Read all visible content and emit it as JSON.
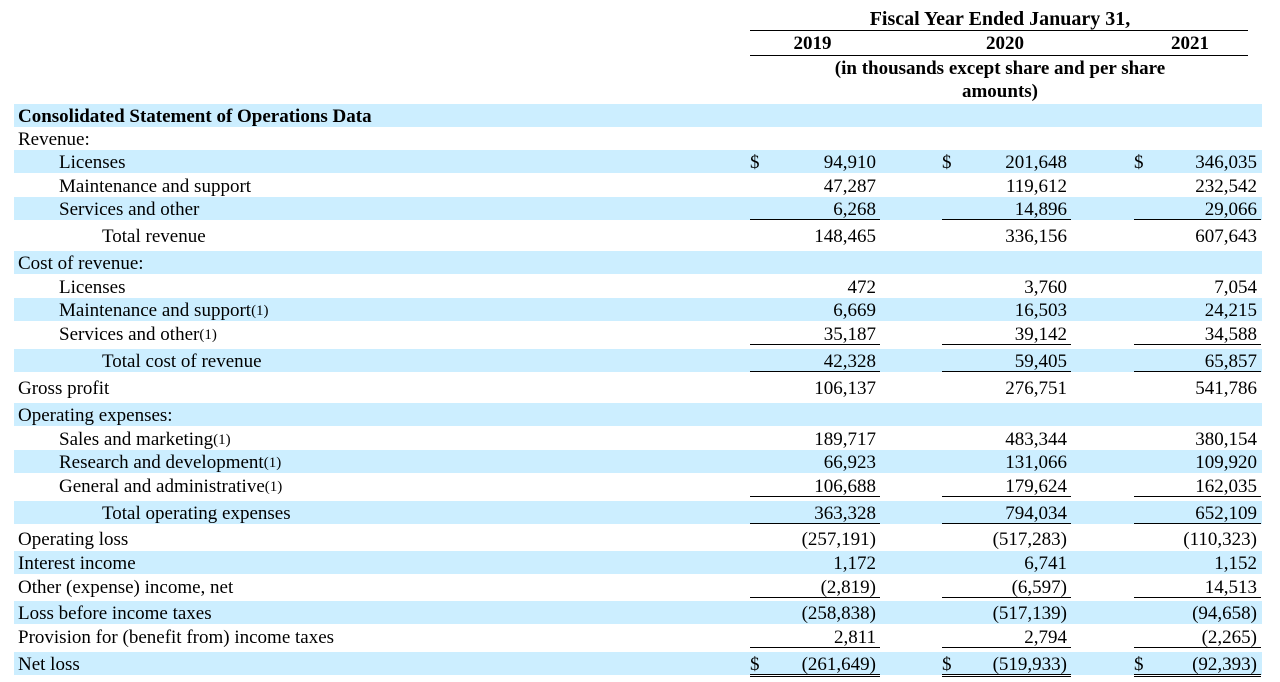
{
  "header": {
    "fiscal_title": "Fiscal Year Ended January 31,",
    "years": [
      "2019",
      "2020",
      "2021"
    ],
    "units_line1": "(in thousands except share and per share",
    "units_line2": "amounts)"
  },
  "rows": [
    {
      "label": "Consolidated Statement of Operations Data",
      "bold": true
    },
    {
      "label": "Revenue:"
    },
    {
      "label": "Licenses",
      "indent": 1,
      "dollar": true,
      "values": [
        "94,910",
        "201,648",
        "346,035"
      ]
    },
    {
      "label": "Maintenance and support",
      "indent": 1,
      "values": [
        "47,287",
        "119,612",
        "232,542"
      ]
    },
    {
      "label": "Services and other",
      "indent": 1,
      "values": [
        "6,268",
        "14,896",
        "29,066"
      ],
      "underline": "single"
    },
    {
      "label": "Total revenue",
      "indent": 2,
      "values": [
        "148,465",
        "336,156",
        "607,643"
      ]
    },
    {
      "label": "Cost of revenue:"
    },
    {
      "label": "Licenses",
      "indent": 1,
      "values": [
        "472",
        "3,760",
        "7,054"
      ]
    },
    {
      "label": "Maintenance and support",
      "footnote": "(1)",
      "indent": 1,
      "values": [
        "6,669",
        "16,503",
        "24,215"
      ]
    },
    {
      "label": "Services and other",
      "footnote": "(1)",
      "indent": 1,
      "values": [
        "35,187",
        "39,142",
        "34,588"
      ],
      "underline": "single"
    },
    {
      "label": "Total cost of revenue",
      "indent": 2,
      "values": [
        "42,328",
        "59,405",
        "65,857"
      ],
      "underline": "single"
    },
    {
      "label": "Gross profit",
      "values": [
        "106,137",
        "276,751",
        "541,786"
      ]
    },
    {
      "label": "Operating expenses:"
    },
    {
      "label": "Sales and marketing",
      "footnote": "(1)",
      "indent": 1,
      "values": [
        "189,717",
        "483,344",
        "380,154"
      ]
    },
    {
      "label": "Research and development",
      "footnote": "(1)",
      "indent": 1,
      "values": [
        "66,923",
        "131,066",
        "109,920"
      ]
    },
    {
      "label": "General and administrative",
      "footnote": "(1)",
      "indent": 1,
      "values": [
        "106,688",
        "179,624",
        "162,035"
      ],
      "underline": "single"
    },
    {
      "label": "Total operating expenses",
      "indent": 2,
      "values": [
        "363,328",
        "794,034",
        "652,109"
      ],
      "underline": "single"
    },
    {
      "label": "Operating loss",
      "values": [
        "(257,191)",
        "(517,283)",
        "(110,323)"
      ]
    },
    {
      "label": "Interest income",
      "values": [
        "1,172",
        "6,741",
        "1,152"
      ]
    },
    {
      "label": "Other (expense) income, net",
      "values": [
        "(2,819)",
        "(6,597)",
        "14,513"
      ],
      "underline": "single"
    },
    {
      "label": "Loss before income taxes",
      "values": [
        "(258,838)",
        "(517,139)",
        "(94,658)"
      ]
    },
    {
      "label": "Provision for (benefit from) income taxes",
      "values": [
        "2,811",
        "2,794",
        "(2,265)"
      ],
      "underline": "single"
    },
    {
      "label": "Net loss",
      "dollar": true,
      "values": [
        "(261,649)",
        "(519,933)",
        "(92,393)"
      ],
      "underline": "double"
    }
  ],
  "currency_symbol": "$",
  "colors": {
    "row_shade": "#cceeff",
    "text": "#000000"
  }
}
